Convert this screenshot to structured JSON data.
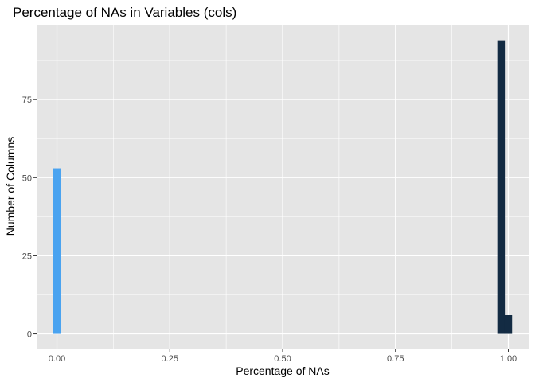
{
  "chart_data": {
    "type": "bar",
    "title": "Percentage of NAs in Variables (cols)",
    "xlabel": "Percentage of NAs",
    "ylabel": "Number of Columns",
    "xlim": [
      -0.045,
      1.045
    ],
    "ylim": [
      -4.7,
      99
    ],
    "x_ticks": [
      0,
      0.25,
      0.5,
      0.75,
      1
    ],
    "x_tick_labels": [
      "0.00",
      "0.25",
      "0.50",
      "0.75",
      "1.00"
    ],
    "x_minor_ticks": [
      0.125,
      0.375,
      0.625,
      0.875
    ],
    "y_ticks": [
      0,
      25,
      50,
      75
    ],
    "y_tick_labels": [
      "0",
      "25",
      "50",
      "75"
    ],
    "y_minor_ticks": [
      12.5,
      37.5,
      62.5,
      87.5
    ],
    "bar_width": 0.0167,
    "bars": [
      {
        "x": 0.0,
        "value": 53,
        "color": "#4aa3f0"
      },
      {
        "x": 0.984,
        "value": 94,
        "color": "#132b43"
      },
      {
        "x": 1.0,
        "value": 6,
        "color": "#132b43"
      }
    ],
    "grid": true,
    "legend": "none",
    "colors": {
      "panel": "#e5e5e5",
      "grid": "#ffffff",
      "bar_low": "#4aa3f0",
      "bar_high": "#132b43"
    }
  }
}
